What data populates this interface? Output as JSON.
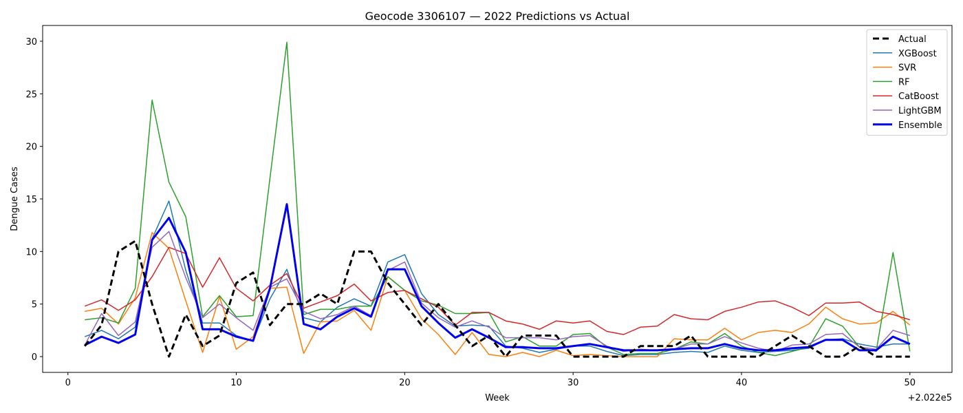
{
  "chart_data": {
    "type": "line",
    "title": "Geocode 3306107 — 2022 Predictions vs Actual",
    "xlabel": "Week",
    "ylabel": "Dengue Cases",
    "x_offset_label": "+2.022e5",
    "xlim": [
      -1.5,
      52.5
    ],
    "ylim": [
      -1.5,
      31.5
    ],
    "x_ticks": [
      0,
      10,
      20,
      30,
      40,
      50
    ],
    "y_ticks": [
      0,
      5,
      10,
      15,
      20,
      25,
      30
    ],
    "grid": false,
    "legend_position": "top-right",
    "x": [
      1,
      2,
      3,
      4,
      5,
      6,
      7,
      8,
      9,
      10,
      11,
      12,
      13,
      14,
      15,
      16,
      17,
      18,
      19,
      20,
      21,
      22,
      23,
      24,
      25,
      26,
      27,
      28,
      29,
      30,
      31,
      32,
      33,
      34,
      35,
      36,
      37,
      38,
      39,
      40,
      41,
      42,
      43,
      44,
      45,
      46,
      47,
      48,
      49,
      50
    ],
    "series": [
      {
        "name": "XGBoost",
        "color": "#1f77b4",
        "width": 1.5,
        "dash": "",
        "values": [
          1.9,
          2.5,
          1.7,
          2.8,
          11.2,
          14.8,
          8.2,
          3.2,
          3.2,
          2.0,
          1.5,
          5.5,
          8.3,
          3.7,
          3.3,
          4.7,
          5.5,
          4.8,
          9.0,
          9.7,
          6.0,
          4.0,
          2.9,
          3.0,
          2.9,
          1.0,
          0.8,
          0.4,
          0.7,
          1.0,
          1.0,
          0.5,
          0.1,
          0.2,
          0.2,
          0.4,
          0.5,
          0.4,
          1.0,
          0.6,
          0.4,
          0.5,
          0.6,
          0.8,
          1.6,
          1.7,
          1.2,
          0.9,
          1.2,
          1.2
        ]
      },
      {
        "name": "SVR",
        "color": "#ff7f0e",
        "width": 1.5,
        "dash": "",
        "values": [
          4.3,
          4.6,
          3.1,
          5.6,
          11.8,
          10.3,
          5.3,
          0.4,
          5.7,
          0.7,
          1.9,
          6.5,
          6.6,
          0.3,
          3.3,
          3.4,
          4.4,
          2.5,
          7.6,
          6.3,
          3.6,
          2.1,
          0.2,
          2.3,
          0.2,
          0.0,
          0.4,
          0.0,
          0.6,
          0.1,
          0.2,
          0.1,
          0.0,
          0.0,
          0.0,
          1.7,
          1.6,
          1.6,
          2.7,
          1.6,
          2.3,
          2.5,
          2.3,
          3.1,
          4.7,
          3.6,
          3.1,
          3.2,
          4.3,
          3.0
        ]
      },
      {
        "name": "RF",
        "color": "#2ca02c",
        "width": 1.5,
        "dash": "",
        "values": [
          3.5,
          3.7,
          3.2,
          6.5,
          24.4,
          16.6,
          13.3,
          3.8,
          5.8,
          3.8,
          3.9,
          17.0,
          29.9,
          4.0,
          4.5,
          4.5,
          4.8,
          4.8,
          7.6,
          6.3,
          5.3,
          4.9,
          4.1,
          4.1,
          4.2,
          1.4,
          1.9,
          1.0,
          1.0,
          2.1,
          2.2,
          0.9,
          0.2,
          0.3,
          0.3,
          0.7,
          1.4,
          1.2,
          2.2,
          1.0,
          0.4,
          0.1,
          0.5,
          0.9,
          3.6,
          2.9,
          0.9,
          0.5,
          9.9,
          0.5
        ]
      },
      {
        "name": "CatBoost",
        "color": "#d62728",
        "width": 1.5,
        "dash": "",
        "values": [
          4.8,
          5.4,
          4.4,
          5.4,
          7.6,
          10.4,
          9.8,
          6.6,
          9.4,
          6.5,
          5.3,
          6.8,
          7.9,
          4.6,
          5.2,
          5.8,
          6.9,
          5.3,
          6.1,
          6.3,
          5.5,
          4.7,
          3.0,
          4.2,
          4.2,
          3.4,
          3.1,
          2.6,
          3.4,
          3.2,
          3.4,
          2.4,
          2.1,
          2.8,
          2.9,
          4.0,
          3.6,
          3.5,
          4.3,
          4.7,
          5.2,
          5.3,
          4.7,
          3.9,
          5.1,
          5.1,
          5.2,
          4.3,
          4.0,
          3.5
        ]
      },
      {
        "name": "LightGBM",
        "color": "#9467bd",
        "width": 1.5,
        "dash": "",
        "values": [
          1.1,
          4.1,
          2.0,
          3.3,
          10.4,
          11.9,
          7.5,
          3.7,
          5.0,
          3.7,
          2.5,
          6.6,
          7.4,
          4.3,
          3.6,
          4.0,
          4.8,
          3.9,
          8.2,
          9.0,
          5.1,
          3.7,
          2.8,
          3.4,
          2.8,
          1.8,
          1.8,
          1.8,
          1.6,
          1.9,
          2.0,
          1.0,
          0.5,
          0.7,
          0.6,
          0.7,
          1.2,
          1.2,
          1.9,
          1.3,
          0.8,
          0.5,
          1.1,
          1.2,
          2.1,
          2.2,
          0.9,
          0.7,
          2.5,
          2.0
        ]
      },
      {
        "name": "Ensemble",
        "color": "#0000ee",
        "width": 3,
        "dash": "",
        "values": [
          1.1,
          1.9,
          1.3,
          2.1,
          11.1,
          13.2,
          9.9,
          2.6,
          2.6,
          1.9,
          1.5,
          6.5,
          14.5,
          3.1,
          2.6,
          3.8,
          4.6,
          3.8,
          8.3,
          8.3,
          4.8,
          3.2,
          1.8,
          2.6,
          1.8,
          0.9,
          0.9,
          0.8,
          0.8,
          1.0,
          1.2,
          0.9,
          0.6,
          0.6,
          0.6,
          0.7,
          0.8,
          0.8,
          1.2,
          0.8,
          0.6,
          0.6,
          0.8,
          0.9,
          1.6,
          1.6,
          0.6,
          0.6,
          1.9,
          1.2
        ]
      },
      {
        "name": "Actual",
        "color": "#000000",
        "width": 3,
        "dash": "9,5",
        "values": [
          1,
          3,
          10,
          11,
          5,
          0,
          4,
          1,
          2,
          7,
          8,
          3,
          5,
          5,
          6,
          5,
          10,
          10,
          7,
          5,
          3,
          5,
          3,
          1,
          2,
          0,
          2,
          2,
          2,
          0,
          0,
          0,
          0,
          1,
          1,
          1,
          2,
          0,
          0,
          0,
          0,
          1,
          2,
          1,
          0,
          0,
          1,
          0,
          0,
          0
        ]
      }
    ],
    "legend_order": [
      "Actual",
      "XGBoost",
      "SVR",
      "RF",
      "CatBoost",
      "LightGBM",
      "Ensemble"
    ]
  }
}
